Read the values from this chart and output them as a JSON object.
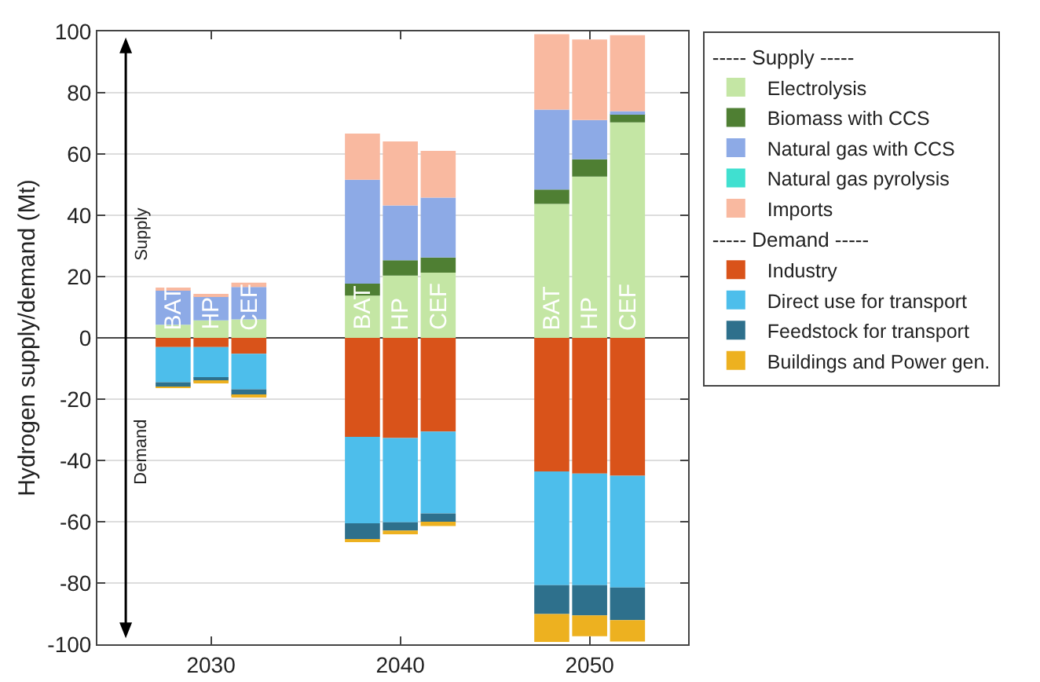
{
  "chart_data": {
    "type": "bar",
    "stacked": true,
    "x": [
      2028,
      2030,
      2032,
      2038,
      2040,
      2042,
      2048,
      2050,
      2052
    ],
    "xlim": [
      2024,
      2055.2
    ],
    "xticks": [
      2030,
      2040,
      2050
    ],
    "ylim": [
      -100,
      100
    ],
    "yticks": [
      -100,
      -80,
      -60,
      -40,
      -20,
      0,
      20,
      40,
      60,
      80,
      100
    ],
    "ylabel": "Hydrogen supply/demand (Mt)",
    "legend_title": [
      "----- Supply -----",
      "----- Demand -----"
    ],
    "series": [
      {
        "name": "Electrolysis",
        "color": "#c4e6a4",
        "values": [
          4.3,
          5.7,
          6,
          13.8,
          20.3,
          21.3,
          43.7,
          52.6,
          70.3
        ]
      },
      {
        "name": "Biomass with CCS",
        "color": "#4f7f33",
        "values": [
          0,
          0,
          null,
          3.9,
          5,
          4.9,
          4.7,
          5.7,
          2.7
        ]
      },
      {
        "name": "Natural gas with CCS",
        "color": "#8daae6",
        "values": [
          11.2,
          8,
          10.6,
          33.9,
          17.9,
          19.6,
          26.1,
          12.8,
          1
        ]
      },
      {
        "name": "Natural gas pyrolysis",
        "color": "#40e0d0",
        "values": [
          0,
          0,
          0,
          0,
          0,
          0,
          0,
          0,
          0
        ]
      },
      {
        "name": "Imports",
        "color": "#f9b9a0",
        "values": [
          0.5,
          0.5,
          1.4,
          15.1,
          20.9,
          15.2,
          24.6,
          26.3,
          24.8
        ]
      },
      {
        "name": "Industry",
        "color": "#d9531a",
        "values": [
          -3,
          -3,
          -5.2,
          -32.3,
          -32.7,
          -30.6,
          -43.6,
          -44.3,
          -45
        ]
      },
      {
        "name": "Direct use for transport",
        "color": "#4dbeeb",
        "values": [
          -11.5,
          -10.3,
          -11.6,
          -28.2,
          -27.5,
          -26.7,
          -37.1,
          -36.4,
          -36.5
        ]
      },
      {
        "name": "Feedstock for transport",
        "color": "#2e708c",
        "values": [
          -1.5,
          -1,
          -2.1,
          -5.3,
          -2.7,
          -2.7,
          -9.4,
          -9.9,
          -10.6
        ]
      },
      {
        "name": "Buildings and Power gen.",
        "color": "#edb120",
        "values": [
          -0.3,
          -0.3,
          -0.2,
          -0.8,
          -1.2,
          -1.4,
          -9.1,
          -6.8,
          -7
        ]
      }
    ],
    "annotations": [
      "Supply",
      "Demand",
      {
        "text": "BAT",
        "x": 2028,
        "y": 0
      },
      {
        "text": "HP",
        "x": 2030,
        "y": 0
      },
      {
        "text": "CEF",
        "x": 2032,
        "y": 0
      },
      {
        "text": "BAT",
        "x": 2038,
        "y": 0
      },
      {
        "text": "HP",
        "x": 2040,
        "y": 0
      },
      {
        "text": "CEF",
        "x": 2042,
        "y": 0
      },
      {
        "text": "BAT",
        "x": 2048,
        "y": 0
      },
      {
        "text": "HP",
        "x": 2050,
        "y": 0
      },
      {
        "text": "CEF",
        "x": 2052,
        "y": 0
      }
    ],
    "grid": "y",
    "legend": "top right"
  }
}
